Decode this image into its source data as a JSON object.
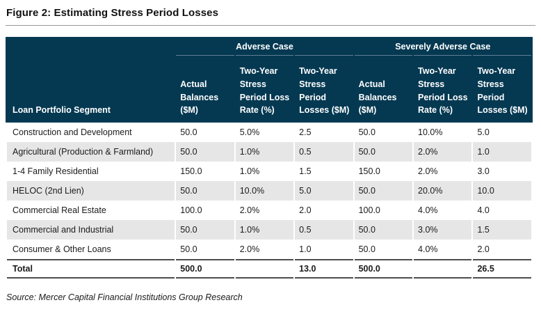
{
  "title": "Figure 2: Estimating Stress Period Losses",
  "source": "Source: Mercer Capital Financial Institutions Group Research",
  "colors": {
    "header_bg": "#053952",
    "header_text": "#ffffff",
    "group_underline": "#5f8094",
    "row_alt_bg": "#e6e6e6",
    "total_rule": "#4d4d4d",
    "title_rule": "#989898"
  },
  "table": {
    "row_header_label": "Loan Portfolio Segment",
    "group_headers": [
      {
        "label": "Adverse Case"
      },
      {
        "label": "Severely Adverse Case"
      }
    ],
    "sub_headers": [
      "Actual Balances ($M)",
      "Two-Year Stress Period Loss Rate (%)",
      "Two-Year Stress Period Losses ($M)",
      "Actual Balances ($M)",
      "Two-Year Stress Period Loss Rate (%)",
      "Two-Year Stress Period Losses ($M)"
    ],
    "rows": [
      {
        "segment": "Construction and Development",
        "values": [
          "50.0",
          "5.0%",
          "2.5",
          "50.0",
          "10.0%",
          "5.0"
        ]
      },
      {
        "segment": "Agricultural (Production & Farmland)",
        "values": [
          "50.0",
          "1.0%",
          "0.5",
          "50.0",
          "2.0%",
          "1.0"
        ]
      },
      {
        "segment": "1-4 Family Residential",
        "values": [
          "150.0",
          "1.0%",
          "1.5",
          "150.0",
          "2.0%",
          "3.0"
        ]
      },
      {
        "segment": "HELOC (2nd Lien)",
        "values": [
          "50.0",
          "10.0%",
          "5.0",
          "50.0",
          "20.0%",
          "10.0"
        ]
      },
      {
        "segment": "Commercial Real Estate",
        "values": [
          "100.0",
          "2.0%",
          "2.0",
          "100.0",
          "4.0%",
          "4.0"
        ]
      },
      {
        "segment": "Commercial and Industrial",
        "values": [
          "50.0",
          "1.0%",
          "0.5",
          "50.0",
          "3.0%",
          "1.5"
        ]
      },
      {
        "segment": "Consumer & Other Loans",
        "values": [
          "50.0",
          "2.0%",
          "1.0",
          "50.0",
          "4.0%",
          "2.0"
        ]
      }
    ],
    "total_row": {
      "segment": "Total",
      "values": [
        "500.0",
        "",
        "13.0",
        "500.0",
        "",
        "26.5"
      ]
    }
  }
}
